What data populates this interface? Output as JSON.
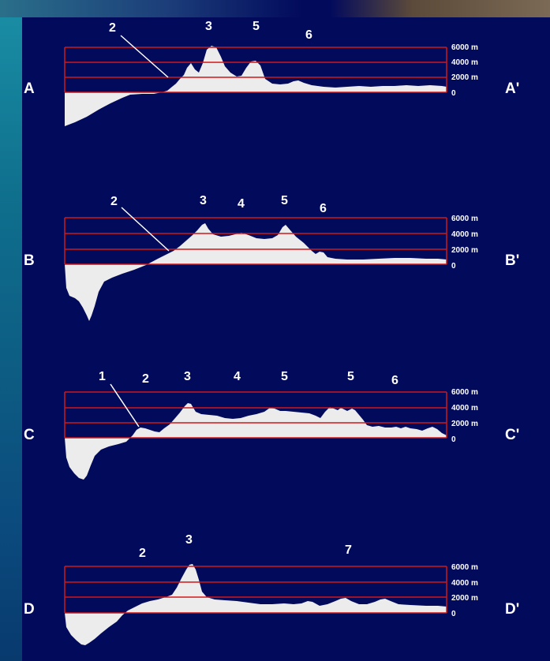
{
  "profiles": [
    {
      "left": "A",
      "right": "A'",
      "peaks": [
        {
          "text": "2"
        },
        {
          "text": "3"
        },
        {
          "text": "5"
        },
        {
          "text": "6"
        }
      ]
    },
    {
      "left": "B",
      "right": "B'",
      "peaks": [
        {
          "text": "2"
        },
        {
          "text": "3"
        },
        {
          "text": "4"
        },
        {
          "text": "5"
        },
        {
          "text": "6"
        }
      ]
    },
    {
      "left": "C",
      "right": "C'",
      "peaks": [
        {
          "text": "1"
        },
        {
          "text": "2"
        },
        {
          "text": "3"
        },
        {
          "text": "4"
        },
        {
          "text": "5"
        },
        {
          "text": "5"
        },
        {
          "text": "6"
        }
      ]
    },
    {
      "left": "D",
      "right": "D'",
      "peaks": [
        {
          "text": "2"
        },
        {
          "text": "3"
        },
        {
          "text": "7"
        }
      ]
    }
  ],
  "scale": [
    "6000 m",
    "4000 m",
    "2000 m",
    "0"
  ],
  "colors": {
    "background": "#020a5c",
    "grid": "#d01818",
    "terrain": "#ececec",
    "text": "#ffffff"
  }
}
